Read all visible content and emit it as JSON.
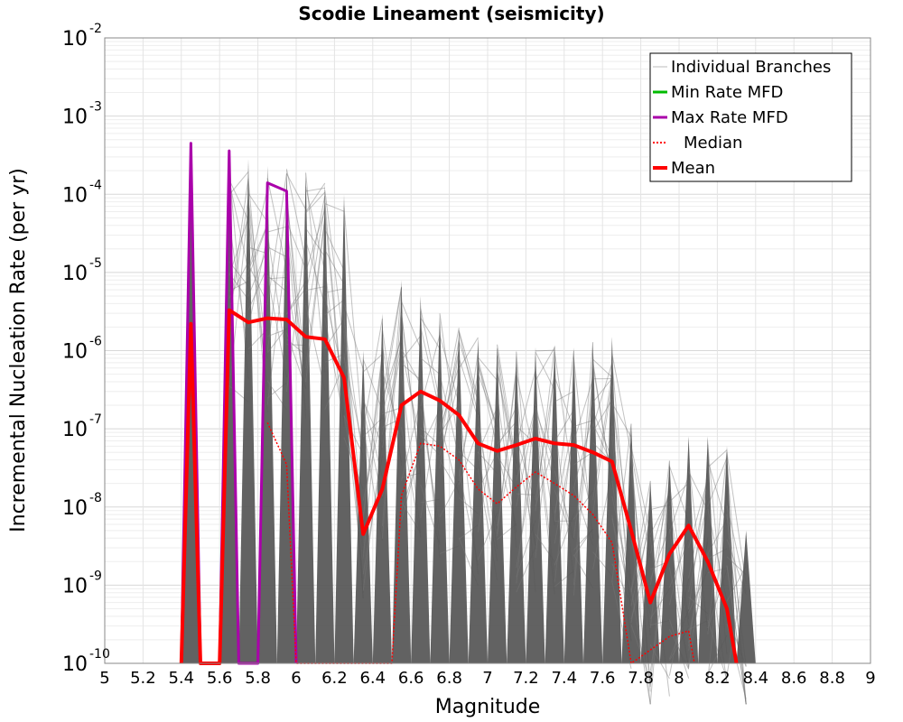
{
  "chart_data": {
    "type": "line",
    "title": "Scodie Lineament (seismicity)",
    "xlabel": "Magnitude",
    "ylabel": "Incremental Nucleation Rate (per yr)",
    "xlim": [
      5,
      9
    ],
    "ylim": [
      1e-10,
      0.01
    ],
    "yscale": "log",
    "grid": true,
    "legend_position": "top-right",
    "x_ticks": [
      "5",
      "5.2",
      "5.4",
      "5.6",
      "5.8",
      "6",
      "6.2",
      "6.4",
      "6.6",
      "6.8",
      "7",
      "7.2",
      "7.4",
      "7.6",
      "7.8",
      "8",
      "8.2",
      "8.4",
      "8.6",
      "8.8",
      "9"
    ],
    "y_ticks": [
      {
        "base": "10",
        "exp": "-2"
      },
      {
        "base": "10",
        "exp": "-3"
      },
      {
        "base": "10",
        "exp": "-4"
      },
      {
        "base": "10",
        "exp": "-5"
      },
      {
        "base": "10",
        "exp": "-6"
      },
      {
        "base": "10",
        "exp": "-7"
      },
      {
        "base": "10",
        "exp": "-8"
      },
      {
        "base": "10",
        "exp": "-9"
      },
      {
        "base": "10",
        "exp": "-10"
      }
    ],
    "legend": [
      {
        "label": "Individual Branches",
        "color": "#bbbbbb",
        "style": "solid"
      },
      {
        "label": "Min Rate MFD",
        "color": "#00bb00",
        "style": "solid"
      },
      {
        "label": "Max Rate MFD",
        "color": "#aa00aa",
        "style": "solid"
      },
      {
        "label": "Median",
        "color": "#ff0000",
        "style": "dotted"
      },
      {
        "label": "Mean",
        "color": "#ff0000",
        "style": "solid"
      }
    ],
    "series": [
      {
        "name": "Max Rate MFD",
        "color": "#aa00aa",
        "x": [
          5.4,
          5.45,
          5.5,
          5.6,
          5.65,
          5.7,
          5.8,
          5.85,
          5.95,
          6.0
        ],
        "y": [
          1e-10,
          0.00045,
          1e-10,
          1e-10,
          0.00036,
          1e-10,
          1e-10,
          0.00014,
          0.00011,
          1e-10
        ]
      },
      {
        "name": "Median",
        "color": "#ff0000",
        "x": [
          5.85,
          5.95,
          6.0,
          6.5,
          6.55,
          6.65,
          6.75,
          6.85,
          6.95,
          7.05,
          7.15,
          7.25,
          7.35,
          7.45,
          7.55,
          7.65,
          7.75,
          7.95,
          8.05,
          8.08
        ],
        "y": [
          1.2e-07,
          3.5e-08,
          1e-10,
          1e-10,
          1.4e-08,
          6.5e-08,
          6e-08,
          4e-08,
          1.7e-08,
          1.1e-08,
          1.8e-08,
          2.8e-08,
          2e-08,
          1.4e-08,
          8e-09,
          3.5e-09,
          1e-10,
          2.2e-10,
          2.6e-10,
          1e-10
        ]
      },
      {
        "name": "Mean",
        "color": "#ff0000",
        "x": [
          5.4,
          5.45,
          5.5,
          5.6,
          5.65,
          5.75,
          5.85,
          5.95,
          6.05,
          6.15,
          6.25,
          6.35,
          6.45,
          6.55,
          6.65,
          6.75,
          6.85,
          6.95,
          7.05,
          7.15,
          7.25,
          7.35,
          7.45,
          7.55,
          7.65,
          7.75,
          7.85,
          7.95,
          8.05,
          8.15,
          8.25,
          8.3
        ],
        "y": [
          1e-10,
          2.2e-06,
          1e-10,
          1e-10,
          3.3e-06,
          2.3e-06,
          2.6e-06,
          2.5e-06,
          1.5e-06,
          1.4e-06,
          4.5e-07,
          4.5e-09,
          1.7e-08,
          2e-07,
          3e-07,
          2.3e-07,
          1.5e-07,
          6.5e-08,
          5.2e-08,
          6.2e-08,
          7.5e-08,
          6.5e-08,
          6.2e-08,
          5e-08,
          3.8e-08,
          5e-09,
          6e-10,
          2.5e-09,
          5.8e-09,
          2e-09,
          5e-10,
          1e-10
        ]
      }
    ],
    "branch_envelope": {
      "name": "Individual Branches",
      "color": "#555555",
      "bins": [
        {
          "x": 5.45,
          "top": 0.0004
        },
        {
          "x": 5.65,
          "top": 0.00036
        },
        {
          "x": 5.75,
          "top": 0.00028
        },
        {
          "x": 5.85,
          "top": 0.00023
        },
        {
          "x": 5.95,
          "top": 0.00022
        },
        {
          "x": 6.05,
          "top": 0.0002
        },
        {
          "x": 6.15,
          "top": 0.00014
        },
        {
          "x": 6.25,
          "top": 0.0001
        },
        {
          "x": 6.35,
          "top": 1e-06
        },
        {
          "x": 6.45,
          "top": 3e-06
        },
        {
          "x": 6.55,
          "top": 8e-06
        },
        {
          "x": 6.65,
          "top": 5e-06
        },
        {
          "x": 6.75,
          "top": 3e-06
        },
        {
          "x": 6.85,
          "top": 2e-06
        },
        {
          "x": 6.95,
          "top": 1.5e-06
        },
        {
          "x": 7.05,
          "top": 1.2e-06
        },
        {
          "x": 7.15,
          "top": 1e-06
        },
        {
          "x": 7.25,
          "top": 1.1e-06
        },
        {
          "x": 7.35,
          "top": 1.2e-06
        },
        {
          "x": 7.45,
          "top": 1.1e-06
        },
        {
          "x": 7.55,
          "top": 1.3e-06
        },
        {
          "x": 7.65,
          "top": 1.5e-06
        },
        {
          "x": 7.75,
          "top": 1.2e-07
        },
        {
          "x": 7.85,
          "top": 2.2e-08
        },
        {
          "x": 7.95,
          "top": 4e-08
        },
        {
          "x": 8.05,
          "top": 8e-08
        },
        {
          "x": 8.15,
          "top": 8e-08
        },
        {
          "x": 8.25,
          "top": 6e-08
        },
        {
          "x": 8.35,
          "top": 5e-09
        }
      ]
    }
  }
}
